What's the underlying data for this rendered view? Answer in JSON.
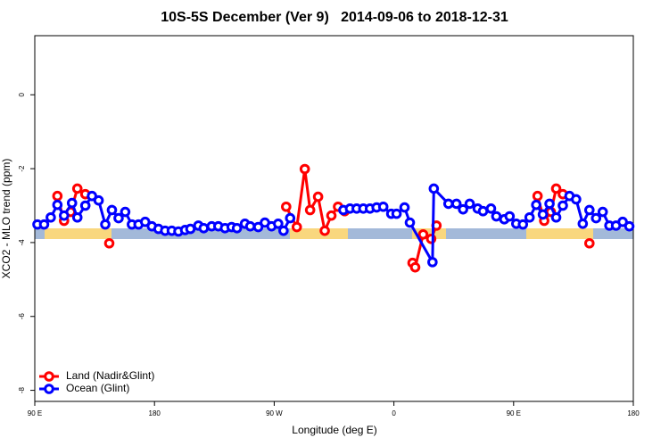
{
  "chart_data": {
    "type": "line",
    "title": "10S-5S December (Ver 9)   2014-09-06 to 2018-12-31",
    "xlabel": "Longitude (deg E)",
    "ylabel": "XCO2 - MLO trend (ppm)",
    "xlim": [
      90,
      540
    ],
    "ylim": [
      -8.3,
      1.6
    ],
    "xticks": [
      {
        "value": 90,
        "label": "90 E"
      },
      180,
      {
        "value": 270,
        "label": "90 W"
      },
      {
        "value": 360,
        "label": "0"
      },
      {
        "value": 450,
        "label": "90 E"
      },
      {
        "value": 540,
        "label": "180"
      }
    ],
    "yticks": [
      0,
      -2,
      -4,
      -6,
      -8
    ],
    "legend": "bottomleft",
    "series": [
      {
        "name": "Land (Nadir&Glint)",
        "color": "#ff0000",
        "x": [
          107,
          112,
          117,
          122,
          128,
          null,
          146,
          null,
          279,
          287,
          293,
          297,
          303,
          308,
          313,
          318,
          323,
          null,
          374,
          376,
          382,
          388,
          392,
          null,
          468,
          473,
          478,
          482,
          487,
          null,
          507
        ],
        "values": [
          -2.74,
          -3.41,
          -3.17,
          -2.54,
          -2.69,
          null,
          -4.02,
          null,
          -3.03,
          -3.58,
          -2.01,
          -3.12,
          -2.76,
          -3.68,
          -3.27,
          -3.03,
          -3.15,
          null,
          -4.55,
          -4.67,
          -3.78,
          -3.9,
          -3.54,
          null,
          -2.74,
          -3.41,
          -3.17,
          -2.54,
          -2.69,
          null,
          -4.02
        ]
      },
      {
        "name": "Ocean (Glint)",
        "color": "#0000ff",
        "x": [
          92,
          97,
          102,
          107,
          112,
          118,
          122,
          128,
          133,
          138,
          143,
          148,
          153,
          158,
          163,
          168,
          173,
          178,
          183,
          188,
          193,
          198,
          203,
          207,
          213,
          217,
          223,
          228,
          233,
          238,
          242,
          248,
          252,
          258,
          263,
          268,
          273,
          277,
          282,
          null,
          322,
          327,
          332,
          337,
          342,
          347,
          352,
          358,
          362,
          368,
          372,
          389,
          390,
          401,
          407,
          412,
          417,
          423,
          427,
          433,
          437,
          443,
          447,
          452,
          457,
          462,
          467,
          472,
          477,
          482,
          487,
          492,
          497,
          502,
          507,
          512,
          517,
          522,
          527,
          532,
          537
        ],
        "values": [
          -3.51,
          -3.51,
          -3.32,
          -2.98,
          -3.27,
          -2.93,
          -3.32,
          -3.0,
          -2.74,
          -2.86,
          -3.51,
          -3.12,
          -3.34,
          -3.17,
          -3.51,
          -3.51,
          -3.44,
          -3.56,
          -3.63,
          -3.68,
          -3.68,
          -3.7,
          -3.66,
          -3.63,
          -3.54,
          -3.61,
          -3.56,
          -3.56,
          -3.61,
          -3.58,
          -3.61,
          -3.49,
          -3.56,
          -3.58,
          -3.46,
          -3.56,
          -3.49,
          -3.68,
          -3.34,
          null,
          -3.12,
          -3.08,
          -3.08,
          -3.08,
          -3.08,
          -3.05,
          -3.03,
          -3.22,
          -3.22,
          -3.05,
          -3.46,
          -4.53,
          -2.54,
          -2.95,
          -2.95,
          -3.1,
          -2.95,
          -3.08,
          -3.15,
          -3.08,
          -3.29,
          -3.37,
          -3.29,
          -3.49,
          -3.51,
          -3.32,
          -2.98,
          -3.24,
          -2.95,
          -3.32,
          -3.0,
          -2.74,
          -2.83,
          -3.49,
          -3.12,
          -3.34,
          -3.17,
          -3.54,
          -3.54,
          -3.44,
          -3.56
        ]
      }
    ]
  }
}
